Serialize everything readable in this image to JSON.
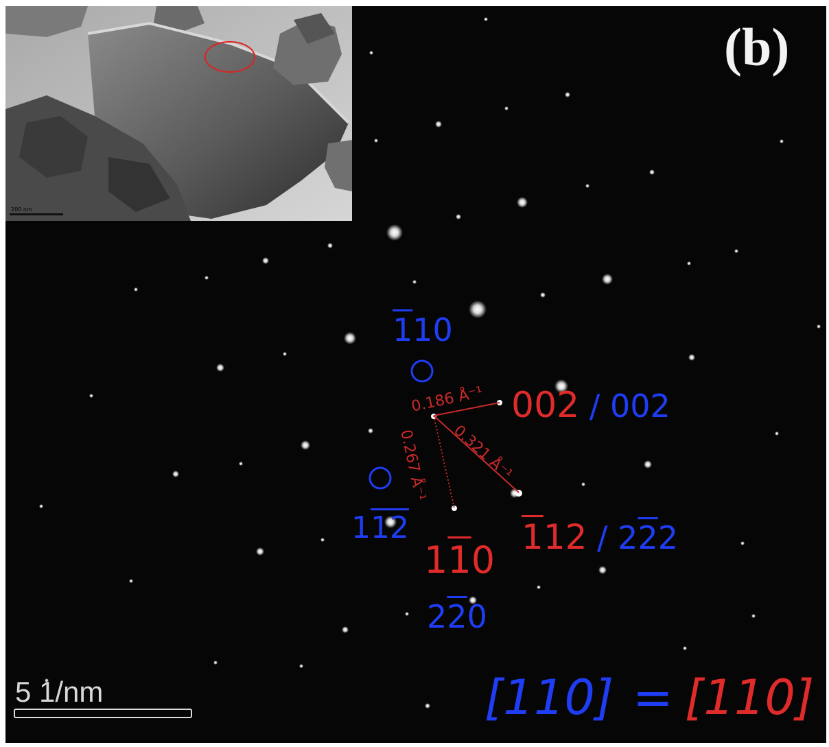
{
  "panel_label": "(b)",
  "inset": {
    "scale_label": "200 nm"
  },
  "spot_labels": {
    "blue_110bar": "1̄10",
    "red_002": "002",
    "blue_002": " / 002",
    "blue_1_12": "11̄2̄",
    "red_1bar10": "11̄0",
    "blue_2bar20": "22̄0",
    "red_1bar12": "1̄1̄2",
    "blue_2bar22": " / 22̄2"
  },
  "measurements": {
    "d1": "0.186 Å⁻¹",
    "d2": "0.321 Å⁻¹",
    "d3": "0.267 Å⁻¹"
  },
  "scale_bar": {
    "label": "5 1/nm"
  },
  "zone_axis": {
    "blue": "[110]",
    "equals": "=",
    "red": "[110]"
  },
  "colors": {
    "background": "#060606",
    "blue_label": "#1f3df4",
    "red_label": "#e02b2b",
    "spot": "#ffffff"
  }
}
